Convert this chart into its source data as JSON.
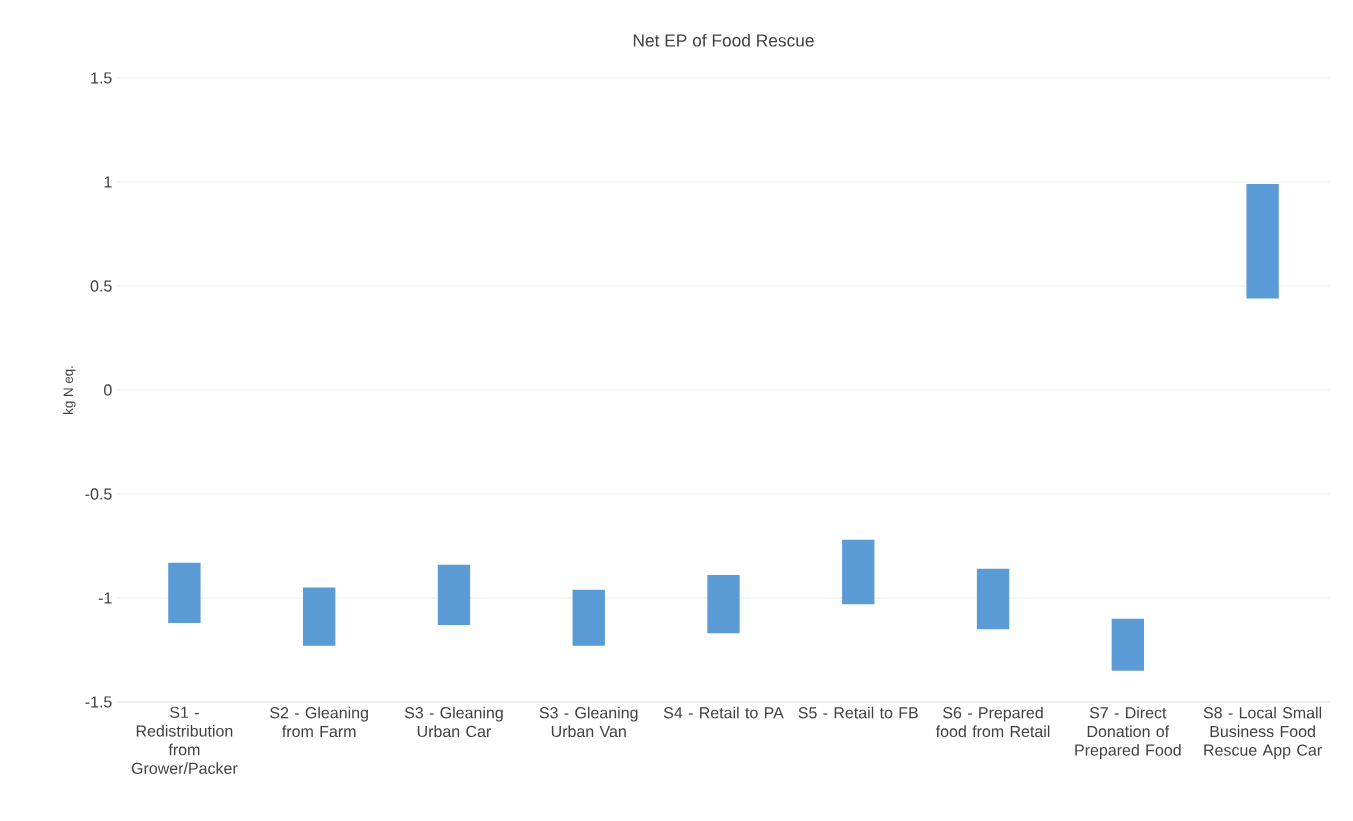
{
  "chart_data": {
    "type": "bar",
    "title": "Net EP of Food Rescue",
    "ylabel": "kg N eq.",
    "categories": [
      "S1 - Redistribution from Grower/Packer",
      "S2 - Gleaning from Farm",
      "S3 - Gleaning Urban Car",
      "S3 - Gleaning Urban Van",
      "S4 - Retail to PA",
      "S5 - Retail to FB",
      "S6 - Prepared food from Retail",
      "S7 - Direct Donation of Prepared Food",
      "S8 - Local Small Business Food Rescue App Car"
    ],
    "base": [
      -1.12,
      -1.23,
      -1.13,
      -1.23,
      -1.17,
      -1.03,
      -1.15,
      -1.35,
      0.44
    ],
    "values": [
      0.29,
      0.28,
      0.29,
      0.27,
      0.28,
      0.31,
      0.29,
      0.25,
      0.55
    ],
    "color": "#5b9bd5",
    "ylim": [
      -1.5,
      1.5
    ],
    "yticks": [
      -1.5,
      -1,
      -0.5,
      0,
      0.5,
      1,
      1.5
    ],
    "grid": "y"
  }
}
